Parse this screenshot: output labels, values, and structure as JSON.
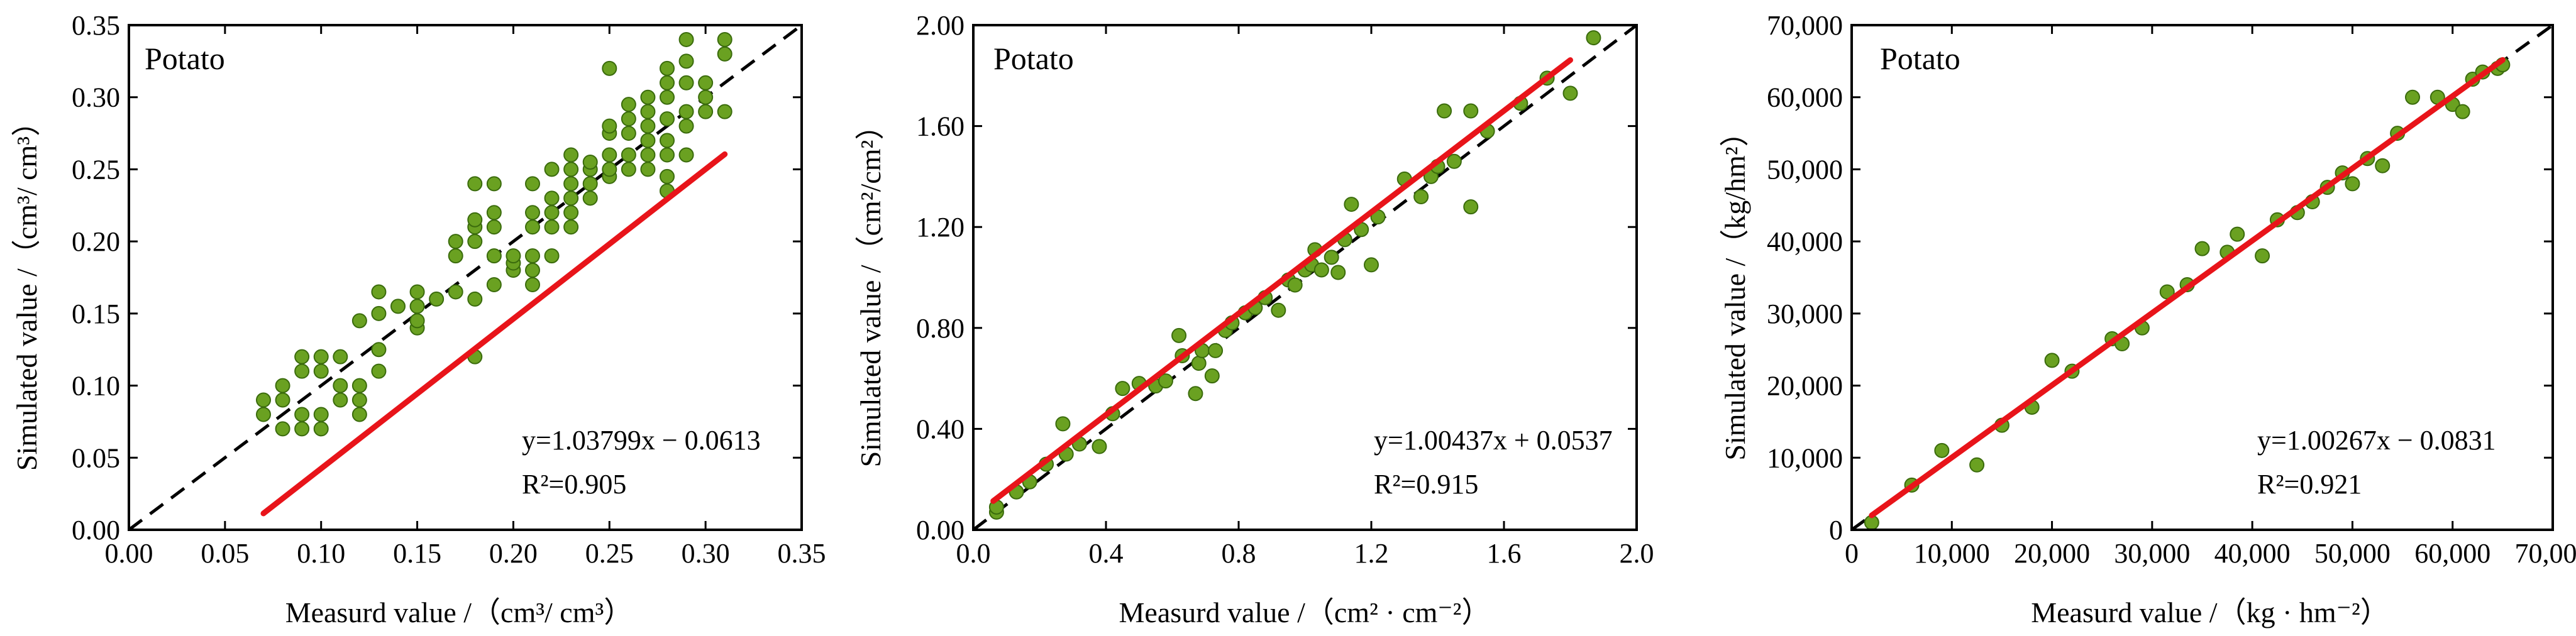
{
  "chart_data": [
    {
      "type": "scatter",
      "panel_label": "Potato",
      "xlabel": "Measurd value /（cm³/ cm³）",
      "ylabel": "Simulated value /（cm³/ cm³）",
      "xlim": [
        0,
        0.35
      ],
      "ylim": [
        0,
        0.35
      ],
      "xticks": [
        "0.00",
        "0.05",
        "0.10",
        "0.15",
        "0.20",
        "0.25",
        "0.30",
        "0.35"
      ],
      "yticks": [
        "0.00",
        "0.05",
        "0.10",
        "0.15",
        "0.20",
        "0.25",
        "0.30",
        "0.35"
      ],
      "fit_equation": "y=1.03799x − 0.0613",
      "r2_label": "R²=0.905",
      "fit": {
        "slope": 1.03799,
        "intercept": -0.0613,
        "x_range": [
          0.07,
          0.31
        ]
      },
      "one_to_one_line": true,
      "points": [
        [
          0.07,
          0.08
        ],
        [
          0.07,
          0.09
        ],
        [
          0.08,
          0.07
        ],
        [
          0.08,
          0.09
        ],
        [
          0.08,
          0.1
        ],
        [
          0.09,
          0.07
        ],
        [
          0.09,
          0.08
        ],
        [
          0.09,
          0.11
        ],
        [
          0.09,
          0.12
        ],
        [
          0.1,
          0.07
        ],
        [
          0.1,
          0.08
        ],
        [
          0.1,
          0.11
        ],
        [
          0.1,
          0.12
        ],
        [
          0.11,
          0.09
        ],
        [
          0.11,
          0.1
        ],
        [
          0.11,
          0.12
        ],
        [
          0.12,
          0.08
        ],
        [
          0.12,
          0.09
        ],
        [
          0.12,
          0.1
        ],
        [
          0.12,
          0.145
        ],
        [
          0.13,
          0.11
        ],
        [
          0.13,
          0.125
        ],
        [
          0.13,
          0.15
        ],
        [
          0.13,
          0.165
        ],
        [
          0.14,
          0.155
        ],
        [
          0.15,
          0.14
        ],
        [
          0.15,
          0.145
        ],
        [
          0.15,
          0.155
        ],
        [
          0.15,
          0.165
        ],
        [
          0.16,
          0.16
        ],
        [
          0.17,
          0.165
        ],
        [
          0.17,
          0.19
        ],
        [
          0.17,
          0.2
        ],
        [
          0.18,
          0.12
        ],
        [
          0.18,
          0.16
        ],
        [
          0.18,
          0.2
        ],
        [
          0.18,
          0.21
        ],
        [
          0.18,
          0.215
        ],
        [
          0.18,
          0.24
        ],
        [
          0.19,
          0.17
        ],
        [
          0.19,
          0.19
        ],
        [
          0.19,
          0.21
        ],
        [
          0.19,
          0.22
        ],
        [
          0.19,
          0.24
        ],
        [
          0.2,
          0.18
        ],
        [
          0.2,
          0.185
        ],
        [
          0.2,
          0.19
        ],
        [
          0.21,
          0.17
        ],
        [
          0.21,
          0.18
        ],
        [
          0.21,
          0.19
        ],
        [
          0.21,
          0.21
        ],
        [
          0.21,
          0.22
        ],
        [
          0.21,
          0.24
        ],
        [
          0.22,
          0.19
        ],
        [
          0.22,
          0.21
        ],
        [
          0.22,
          0.22
        ],
        [
          0.22,
          0.23
        ],
        [
          0.22,
          0.25
        ],
        [
          0.23,
          0.21
        ],
        [
          0.23,
          0.22
        ],
        [
          0.23,
          0.23
        ],
        [
          0.23,
          0.24
        ],
        [
          0.23,
          0.25
        ],
        [
          0.23,
          0.26
        ],
        [
          0.24,
          0.23
        ],
        [
          0.24,
          0.24
        ],
        [
          0.24,
          0.25
        ],
        [
          0.24,
          0.255
        ],
        [
          0.25,
          0.245
        ],
        [
          0.25,
          0.25
        ],
        [
          0.25,
          0.26
        ],
        [
          0.25,
          0.275
        ],
        [
          0.25,
          0.28
        ],
        [
          0.25,
          0.32
        ],
        [
          0.26,
          0.25
        ],
        [
          0.26,
          0.26
        ],
        [
          0.26,
          0.275
        ],
        [
          0.26,
          0.285
        ],
        [
          0.26,
          0.295
        ],
        [
          0.27,
          0.25
        ],
        [
          0.27,
          0.26
        ],
        [
          0.27,
          0.27
        ],
        [
          0.27,
          0.28
        ],
        [
          0.27,
          0.29
        ],
        [
          0.27,
          0.3
        ],
        [
          0.28,
          0.235
        ],
        [
          0.28,
          0.245
        ],
        [
          0.28,
          0.26
        ],
        [
          0.28,
          0.27
        ],
        [
          0.28,
          0.285
        ],
        [
          0.28,
          0.3
        ],
        [
          0.28,
          0.31
        ],
        [
          0.28,
          0.32
        ],
        [
          0.29,
          0.26
        ],
        [
          0.29,
          0.28
        ],
        [
          0.29,
          0.29
        ],
        [
          0.29,
          0.31
        ],
        [
          0.29,
          0.325
        ],
        [
          0.29,
          0.34
        ],
        [
          0.3,
          0.29
        ],
        [
          0.3,
          0.3
        ],
        [
          0.3,
          0.31
        ],
        [
          0.31,
          0.29
        ],
        [
          0.31,
          0.33
        ],
        [
          0.31,
          0.34
        ]
      ]
    },
    {
      "type": "scatter",
      "panel_label": "Potato",
      "xlabel": "Measurd value /（cm² · cm⁻²）",
      "ylabel": "Simulated value /（cm²/cm²）",
      "xlim": [
        0,
        2.0
      ],
      "ylim": [
        0,
        2.0
      ],
      "xticks": [
        "0.0",
        "0.4",
        "0.8",
        "1.2",
        "1.6",
        "2.0"
      ],
      "yticks": [
        "0.00",
        "0.40",
        "0.80",
        "1.20",
        "1.60",
        "2.00"
      ],
      "fit_equation": "y=1.00437x + 0.0537",
      "r2_label": "R²=0.915",
      "fit": {
        "slope": 1.00437,
        "intercept": 0.0537,
        "x_range": [
          0.06,
          1.8
        ]
      },
      "one_to_one_line": true,
      "points": [
        [
          0.07,
          0.07
        ],
        [
          0.07,
          0.09
        ],
        [
          0.13,
          0.15
        ],
        [
          0.17,
          0.19
        ],
        [
          0.22,
          0.26
        ],
        [
          0.27,
          0.42
        ],
        [
          0.28,
          0.3
        ],
        [
          0.32,
          0.34
        ],
        [
          0.38,
          0.33
        ],
        [
          0.42,
          0.46
        ],
        [
          0.45,
          0.56
        ],
        [
          0.5,
          0.58
        ],
        [
          0.55,
          0.57
        ],
        [
          0.58,
          0.59
        ],
        [
          0.62,
          0.77
        ],
        [
          0.63,
          0.69
        ],
        [
          0.67,
          0.54
        ],
        [
          0.68,
          0.66
        ],
        [
          0.69,
          0.71
        ],
        [
          0.72,
          0.61
        ],
        [
          0.73,
          0.71
        ],
        [
          0.76,
          0.79
        ],
        [
          0.78,
          0.82
        ],
        [
          0.82,
          0.86
        ],
        [
          0.85,
          0.88
        ],
        [
          0.88,
          0.92
        ],
        [
          0.92,
          0.87
        ],
        [
          0.95,
          0.99
        ],
        [
          0.97,
          0.97
        ],
        [
          1.0,
          1.03
        ],
        [
          1.02,
          1.05
        ],
        [
          1.03,
          1.11
        ],
        [
          1.05,
          1.03
        ],
        [
          1.08,
          1.08
        ],
        [
          1.1,
          1.02
        ],
        [
          1.12,
          1.15
        ],
        [
          1.14,
          1.29
        ],
        [
          1.17,
          1.19
        ],
        [
          1.2,
          1.05
        ],
        [
          1.22,
          1.24
        ],
        [
          1.3,
          1.39
        ],
        [
          1.35,
          1.32
        ],
        [
          1.38,
          1.4
        ],
        [
          1.4,
          1.44
        ],
        [
          1.42,
          1.66
        ],
        [
          1.45,
          1.46
        ],
        [
          1.5,
          1.28
        ],
        [
          1.5,
          1.66
        ],
        [
          1.55,
          1.58
        ],
        [
          1.65,
          1.69
        ],
        [
          1.73,
          1.79
        ],
        [
          1.8,
          1.73
        ],
        [
          1.87,
          1.95
        ]
      ]
    },
    {
      "type": "scatter",
      "panel_label": "Potato",
      "xlabel": "Measurd value /（kg · hm⁻²）",
      "ylabel": "Simulated value /（kg/hm²）",
      "xlim": [
        0,
        70000
      ],
      "ylim": [
        0,
        70000
      ],
      "xticks": [
        "0",
        "10,000",
        "20,000",
        "30,000",
        "40,000",
        "50,000",
        "60,000",
        "70,000"
      ],
      "yticks": [
        "0",
        "10,000",
        "20,000",
        "30,000",
        "40,000",
        "50,000",
        "60,000",
        "70,000"
      ],
      "fit_equation": "y=1.00267x − 0.0831",
      "r2_label": "R²=0.921",
      "fit": {
        "slope": 1.00267,
        "intercept": -0.0831,
        "x_range": [
          2000,
          65000
        ]
      },
      "one_to_one_line": true,
      "points": [
        [
          2000,
          1000
        ],
        [
          6000,
          6200
        ],
        [
          9000,
          11000
        ],
        [
          12500,
          9000
        ],
        [
          15000,
          14500
        ],
        [
          18000,
          17000
        ],
        [
          20000,
          23500
        ],
        [
          22000,
          22000
        ],
        [
          26000,
          26500
        ],
        [
          27000,
          25800
        ],
        [
          29000,
          28000
        ],
        [
          31500,
          33000
        ],
        [
          33500,
          34000
        ],
        [
          35000,
          39000
        ],
        [
          37500,
          38500
        ],
        [
          38500,
          41000
        ],
        [
          41000,
          38000
        ],
        [
          42500,
          43000
        ],
        [
          44500,
          44000
        ],
        [
          46000,
          45500
        ],
        [
          47500,
          47500
        ],
        [
          49000,
          49500
        ],
        [
          50000,
          48000
        ],
        [
          51500,
          51500
        ],
        [
          53000,
          50500
        ],
        [
          54500,
          55000
        ],
        [
          56000,
          60000
        ],
        [
          58500,
          60000
        ],
        [
          60000,
          59000
        ],
        [
          61000,
          58000
        ],
        [
          62000,
          62500
        ],
        [
          63000,
          63500
        ],
        [
          64500,
          64000
        ],
        [
          65000,
          64500
        ]
      ]
    }
  ]
}
